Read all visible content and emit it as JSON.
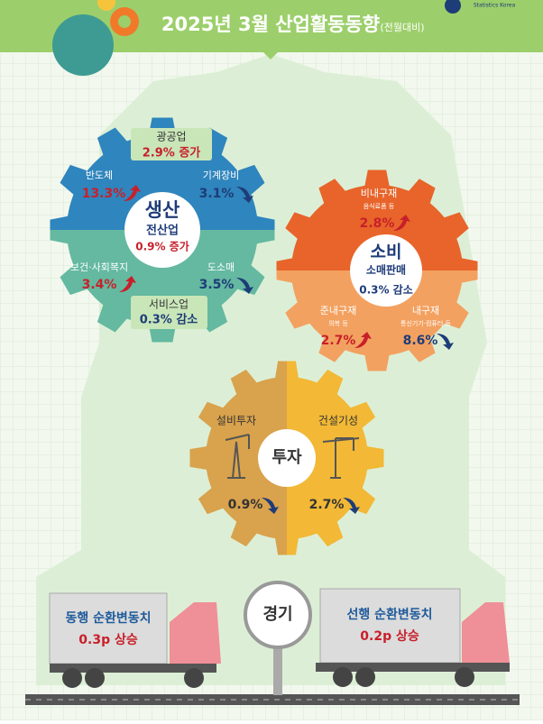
{
  "header": {
    "title": "2025년 3월 산업활동동향",
    "subtitle": "(전월대비)",
    "logo": "Statistics Korea"
  },
  "production": {
    "title": "생산",
    "total_label": "전산업",
    "total_value": "0.9% 증가",
    "top": {
      "label": "광공업",
      "value": "2.9% 증가"
    },
    "bottom": {
      "label": "서비스업",
      "value": "0.3% 감소"
    },
    "items": [
      {
        "label": "반도체",
        "value": "13.3%",
        "direction": "up"
      },
      {
        "label": "기계장비",
        "value": "3.1%",
        "direction": "down"
      },
      {
        "label": "보건·사회복지",
        "value": "3.4%",
        "direction": "up"
      },
      {
        "label": "도소매",
        "value": "3.5%",
        "direction": "down"
      }
    ]
  },
  "consumption": {
    "title": "소비",
    "total_label": "소매판매",
    "total_value": "0.3% 감소",
    "items": [
      {
        "label": "비내구재",
        "note": "음식료품 등",
        "value": "2.8%",
        "direction": "up"
      },
      {
        "label": "준내구재",
        "note": "의복 등",
        "value": "2.7%",
        "direction": "up"
      },
      {
        "label": "내구재",
        "note": "통신기기·컴퓨터 등",
        "value": "8.6%",
        "direction": "down"
      }
    ]
  },
  "investment": {
    "title": "투자",
    "items": [
      {
        "label": "설비투자",
        "value": "0.9%",
        "direction": "down"
      },
      {
        "label": "건설기성",
        "value": "2.7%",
        "direction": "down"
      }
    ]
  },
  "economy": {
    "title": "경기",
    "items": [
      {
        "label": "동행 순환변동치",
        "value": "0.3p 상승"
      },
      {
        "label": "선행 순환변동치",
        "value": "0.2p 상승"
      }
    ]
  }
}
